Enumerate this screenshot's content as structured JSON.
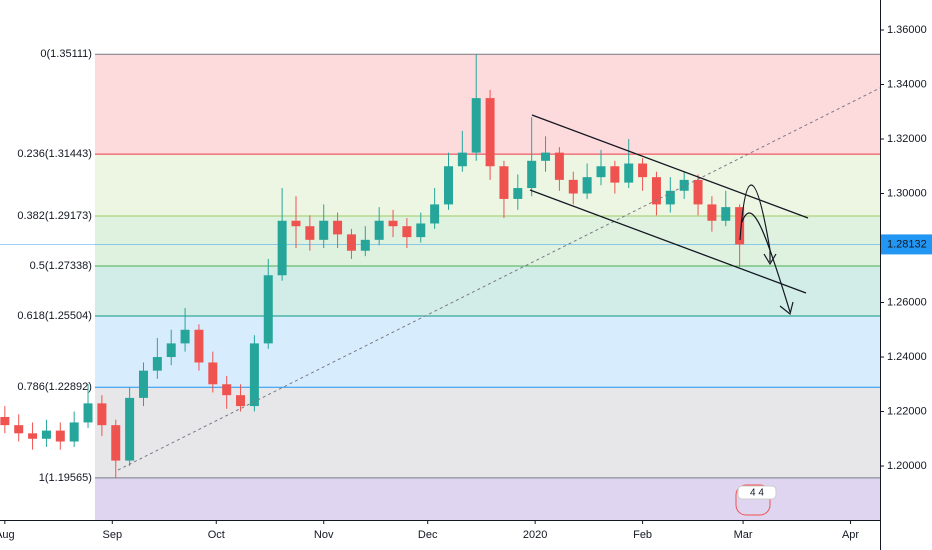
{
  "chart_data": {
    "type": "candlestick",
    "x": [
      0,
      4,
      8,
      12,
      16,
      20,
      24,
      28,
      32,
      36,
      40,
      44,
      48,
      52,
      56,
      60,
      64,
      68,
      72,
      76,
      80,
      84,
      88,
      92,
      96,
      100,
      104,
      108,
      112,
      116,
      120,
      124,
      128,
      132,
      136,
      140,
      144,
      148,
      152,
      156,
      160,
      164,
      168,
      172,
      176,
      180,
      184,
      188,
      192,
      196,
      200,
      204,
      208,
      212
    ],
    "open": [
      1.218,
      1.215,
      1.212,
      1.21,
      1.213,
      1.209,
      1.216,
      1.223,
      1.215,
      1.202,
      1.225,
      1.235,
      1.24,
      1.245,
      1.25,
      1.238,
      1.23,
      1.226,
      1.222,
      1.245,
      1.27,
      1.29,
      1.288,
      1.283,
      1.29,
      1.285,
      1.279,
      1.283,
      1.29,
      1.288,
      1.284,
      1.289,
      1.296,
      1.31,
      1.315,
      1.335,
      1.31,
      1.298,
      1.302,
      1.312,
      1.315,
      1.305,
      1.3,
      1.306,
      1.31,
      1.304,
      1.311,
      1.306,
      1.296,
      1.301,
      1.305,
      1.296,
      1.29,
      1.295
    ],
    "high": [
      1.222,
      1.219,
      1.216,
      1.217,
      1.216,
      1.22,
      1.23,
      1.226,
      1.217,
      1.229,
      1.238,
      1.247,
      1.25,
      1.258,
      1.252,
      1.242,
      1.233,
      1.23,
      1.248,
      1.276,
      1.302,
      1.299,
      1.292,
      1.296,
      1.293,
      1.287,
      1.288,
      1.295,
      1.294,
      1.291,
      1.293,
      1.302,
      1.315,
      1.323,
      1.3511,
      1.338,
      1.312,
      1.307,
      1.328,
      1.321,
      1.317,
      1.308,
      1.311,
      1.316,
      1.312,
      1.32,
      1.313,
      1.308,
      1.306,
      1.308,
      1.307,
      1.299,
      1.301,
      1.296
    ],
    "low": [
      1.212,
      1.209,
      1.206,
      1.207,
      1.206,
      1.207,
      1.214,
      1.211,
      1.1957,
      1.2,
      1.222,
      1.232,
      1.237,
      1.242,
      1.235,
      1.227,
      1.221,
      1.22,
      1.22,
      1.243,
      1.268,
      1.28,
      1.279,
      1.28,
      1.28,
      1.276,
      1.277,
      1.281,
      1.284,
      1.28,
      1.282,
      1.287,
      1.294,
      1.308,
      1.312,
      1.305,
      1.291,
      1.294,
      1.299,
      1.308,
      1.301,
      1.296,
      1.298,
      1.303,
      1.3,
      1.302,
      1.301,
      1.292,
      1.293,
      1.298,
      1.292,
      1.286,
      1.288,
      1.273
    ],
    "close": [
      1.215,
      1.212,
      1.21,
      1.213,
      1.209,
      1.216,
      1.223,
      1.215,
      1.202,
      1.225,
      1.235,
      1.24,
      1.245,
      1.25,
      1.238,
      1.23,
      1.226,
      1.222,
      1.245,
      1.27,
      1.29,
      1.288,
      1.283,
      1.29,
      1.285,
      1.279,
      1.283,
      1.29,
      1.288,
      1.284,
      1.289,
      1.296,
      1.31,
      1.315,
      1.335,
      1.31,
      1.298,
      1.302,
      1.312,
      1.315,
      1.305,
      1.3,
      1.306,
      1.31,
      1.304,
      1.311,
      1.306,
      1.296,
      1.301,
      1.305,
      1.296,
      1.29,
      1.295,
      1.2813
    ],
    "up_color": "#26a69a",
    "down_color": "#ef5350",
    "xlim": [
      -1.4,
      252.5
    ],
    "xticks": [
      {
        "value": 0,
        "label": "Aug"
      },
      {
        "value": 31,
        "label": "Sep"
      },
      {
        "value": 61,
        "label": "Oct"
      },
      {
        "value": 92,
        "label": "Nov"
      },
      {
        "value": 122,
        "label": "Dec"
      },
      {
        "value": 153,
        "label": "2020"
      },
      {
        "value": 184,
        "label": "Feb"
      },
      {
        "value": 213,
        "label": "Mar"
      },
      {
        "value": 244,
        "label": "Apr"
      }
    ],
    "ylim": [
      1.1802,
      1.371
    ],
    "yticks": [
      {
        "value": 1.2,
        "label": "1.20000"
      },
      {
        "value": 1.22,
        "label": "1.22000"
      },
      {
        "value": 1.24,
        "label": "1.24000"
      },
      {
        "value": 1.26,
        "label": "1.26000"
      },
      {
        "value": 1.28,
        "label": "1.28000"
      },
      {
        "value": 1.3,
        "label": "1.30000"
      },
      {
        "value": 1.32,
        "label": "1.32000"
      },
      {
        "value": 1.34,
        "label": "1.34000"
      },
      {
        "value": 1.36,
        "label": "1.36000"
      }
    ],
    "fib_start_x": 26,
    "fib_levels": [
      {
        "label": "0(1.35111)",
        "value": 1.35111,
        "color": "#787b86"
      },
      {
        "label": "0.236(1.31443)",
        "value": 1.31443,
        "color": "#f23645"
      },
      {
        "label": "0.382(1.29173)",
        "value": 1.29173,
        "color": "#9ccc65"
      },
      {
        "label": "0.5(1.27338)",
        "value": 1.27338,
        "color": "#4caf50"
      },
      {
        "label": "0.618(1.25504)",
        "value": 1.25504,
        "color": "#089981"
      },
      {
        "label": "0.786(1.22892)",
        "value": 1.22892,
        "color": "#2196f3"
      },
      {
        "label": "1(1.19565)",
        "value": 1.19565,
        "color": "#787b86"
      }
    ],
    "last_price": {
      "value": 1.28132,
      "label": "1.28132",
      "color": "#2196f3"
    },
    "badge": "4 4"
  }
}
